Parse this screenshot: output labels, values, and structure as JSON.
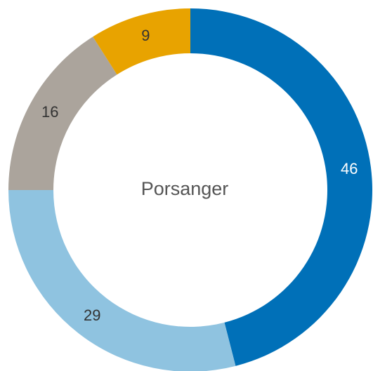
{
  "chart_data": {
    "type": "donut",
    "center_label": "Porsanger",
    "values": [
      46,
      29,
      16,
      9
    ],
    "colors": [
      "#0070b8",
      "#8fc3e0",
      "#aba49c",
      "#e8a300"
    ]
  }
}
